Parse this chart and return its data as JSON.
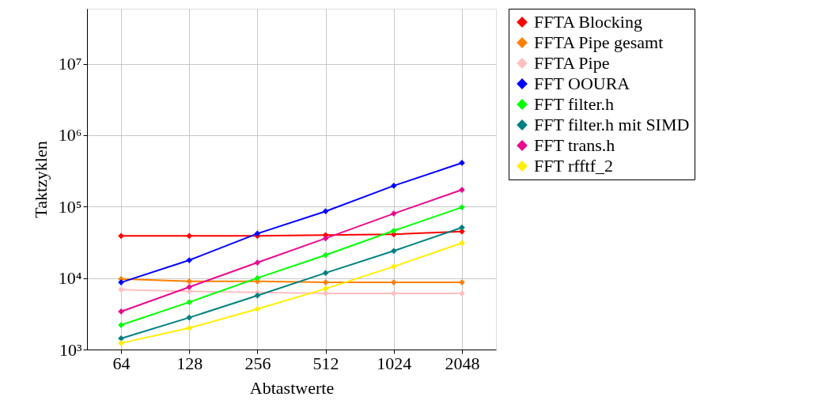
{
  "chart_data": {
    "type": "line",
    "xlabel": "Abtastwerte",
    "ylabel": "Taktzyklen",
    "categories": [
      "64",
      "128",
      "256",
      "512",
      "1024",
      "2048"
    ],
    "series": [
      {
        "name": "FFTA Blocking",
        "color": "#ff0000",
        "values": [
          39000,
          39000,
          39000,
          40000,
          41000,
          45000
        ]
      },
      {
        "name": "FFTA Pipe gesamt",
        "color": "#ff8000",
        "values": [
          9700,
          9000,
          9000,
          8700,
          8700,
          8700
        ]
      },
      {
        "name": "FFTA Pipe",
        "color": "#ffbfbf",
        "values": [
          6900,
          6500,
          6300,
          6100,
          6100,
          6100
        ]
      },
      {
        "name": "FFT OOURA",
        "color": "#0000ff",
        "values": [
          8700,
          17800,
          42000,
          86000,
          196000,
          410000
        ]
      },
      {
        "name": "FFT filter.h",
        "color": "#00ff00",
        "values": [
          2200,
          4600,
          10000,
          21000,
          46000,
          98000
        ]
      },
      {
        "name": "FFT filter.h mit SIMD",
        "color": "#008080",
        "values": [
          1430,
          2800,
          5700,
          11800,
          24000,
          51000
        ]
      },
      {
        "name": "FFT trans.h",
        "color": "#ea0a8e",
        "values": [
          3400,
          7500,
          16500,
          36000,
          80000,
          172000
        ]
      },
      {
        "name": "FFT rfftf_2",
        "color": "#ffee00",
        "values": [
          1230,
          2000,
          3700,
          7100,
          14500,
          31000
        ]
      }
    ],
    "log": "y",
    "ylim": [
      1000,
      59000000
    ],
    "yticks": [
      {
        "value": 1000,
        "label": "10³"
      },
      {
        "value": 10000,
        "label": "10⁴"
      },
      {
        "value": 100000,
        "label": "10⁵"
      },
      {
        "value": 1000000,
        "label": "10⁶"
      },
      {
        "value": 10000000,
        "label": "10⁷"
      }
    ],
    "grid": true,
    "legend": "top right",
    "marker": "diamond",
    "line_style": "solid"
  }
}
